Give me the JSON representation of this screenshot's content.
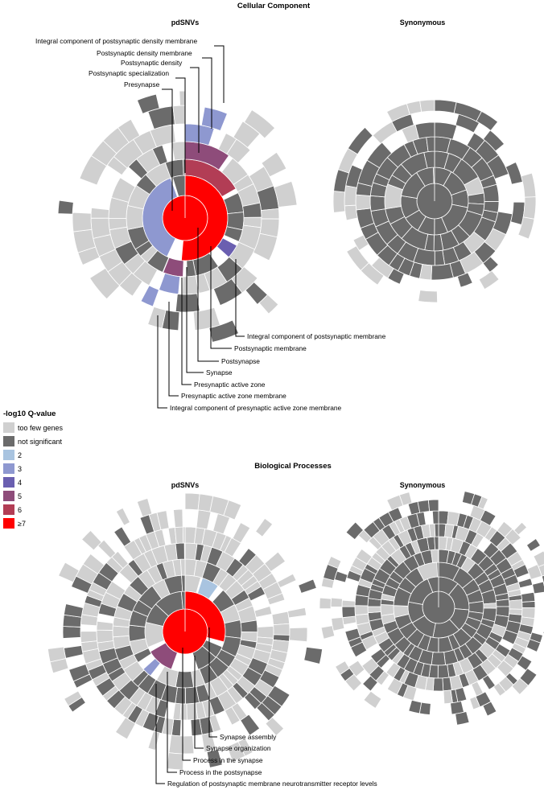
{
  "colors": {
    "too_few": "#d0d0d0",
    "not_sig": "#6b6b6b",
    "q2": "#a9c4e0",
    "q3": "#8e98d0",
    "q4": "#6a5fb0",
    "q5": "#8e4c7a",
    "q6": "#b23d55",
    "q7": "#ff0000"
  },
  "chart_data": [
    {
      "type": "sunburst",
      "panel": "Cellular Component",
      "title": "Cellular Component",
      "series": [
        {
          "name": "pdSNVs",
          "labels": {
            "top": [
              "Integral component of postsynaptic density membrane",
              "Postsynaptic density membrane",
              "Postsynaptic density",
              "Postsynaptic specialization",
              "Presynapse"
            ],
            "bottom": [
              "Integral component of postsynaptic membrane",
              "Postsynaptic membrane",
              "Postsynapse",
              "Synapse",
              "Presynaptic active zone",
              "Presynaptic active zone membrane",
              "Integral component of presynaptic active zone membrane"
            ]
          },
          "highlighted_terms": [
            {
              "term": "Synapse",
              "q_class": "≥7"
            },
            {
              "term": "Postsynapse",
              "q_class": "≥7"
            },
            {
              "term": "Presynapse",
              "q_class": "3"
            },
            {
              "term": "Postsynaptic specialization",
              "q_class": "6"
            },
            {
              "term": "Postsynaptic density",
              "q_class": "5"
            },
            {
              "term": "Postsynaptic density membrane",
              "q_class": "3"
            },
            {
              "term": "Integral component of postsynaptic density membrane",
              "q_class": "3"
            },
            {
              "term": "Postsynaptic membrane",
              "q_class": "4"
            },
            {
              "term": "Integral component of postsynaptic membrane",
              "q_class": "3"
            },
            {
              "term": "Presynaptic active zone",
              "q_class": "5"
            },
            {
              "term": "Presynaptic active zone membrane",
              "q_class": "3"
            },
            {
              "term": "Integral component of presynaptic active zone membrane",
              "q_class": "3"
            }
          ]
        },
        {
          "name": "Synonymous",
          "highlighted_terms": []
        }
      ]
    },
    {
      "type": "sunburst",
      "panel": "Biological Processes",
      "title": "Biological Processes",
      "series": [
        {
          "name": "pdSNVs",
          "labels": {
            "bottom": [
              "Synapse assembly",
              "Synapse organization",
              "Process in the synapse",
              "Process in the postsynapse",
              "Regulation of postsynaptic membrane neurotransmitter receptor levels"
            ]
          },
          "highlighted_terms": [
            {
              "term": "Process in the synapse",
              "q_class": "≥7"
            },
            {
              "term": "Synapse organization",
              "q_class": "≥7"
            },
            {
              "term": "Synapse assembly",
              "q_class": "2"
            },
            {
              "term": "Process in the postsynapse",
              "q_class": "5"
            },
            {
              "term": "Regulation of postsynaptic membrane neurotransmitter receptor levels",
              "q_class": "3"
            }
          ]
        },
        {
          "name": "Synonymous",
          "highlighted_terms": []
        }
      ]
    }
  ],
  "legend": {
    "title": "-log10 Q-value",
    "entries": [
      {
        "label": "too few genes",
        "color": "#d0d0d0"
      },
      {
        "label": "not significant",
        "color": "#6b6b6b"
      },
      {
        "label": "2",
        "color": "#a9c4e0"
      },
      {
        "label": "3",
        "color": "#8e98d0"
      },
      {
        "label": "4",
        "color": "#6a5fb0"
      },
      {
        "label": "5",
        "color": "#8e4c7a"
      },
      {
        "label": "6",
        "color": "#b23d55"
      },
      {
        "label": "≥7",
        "color": "#ff0000"
      }
    ]
  }
}
